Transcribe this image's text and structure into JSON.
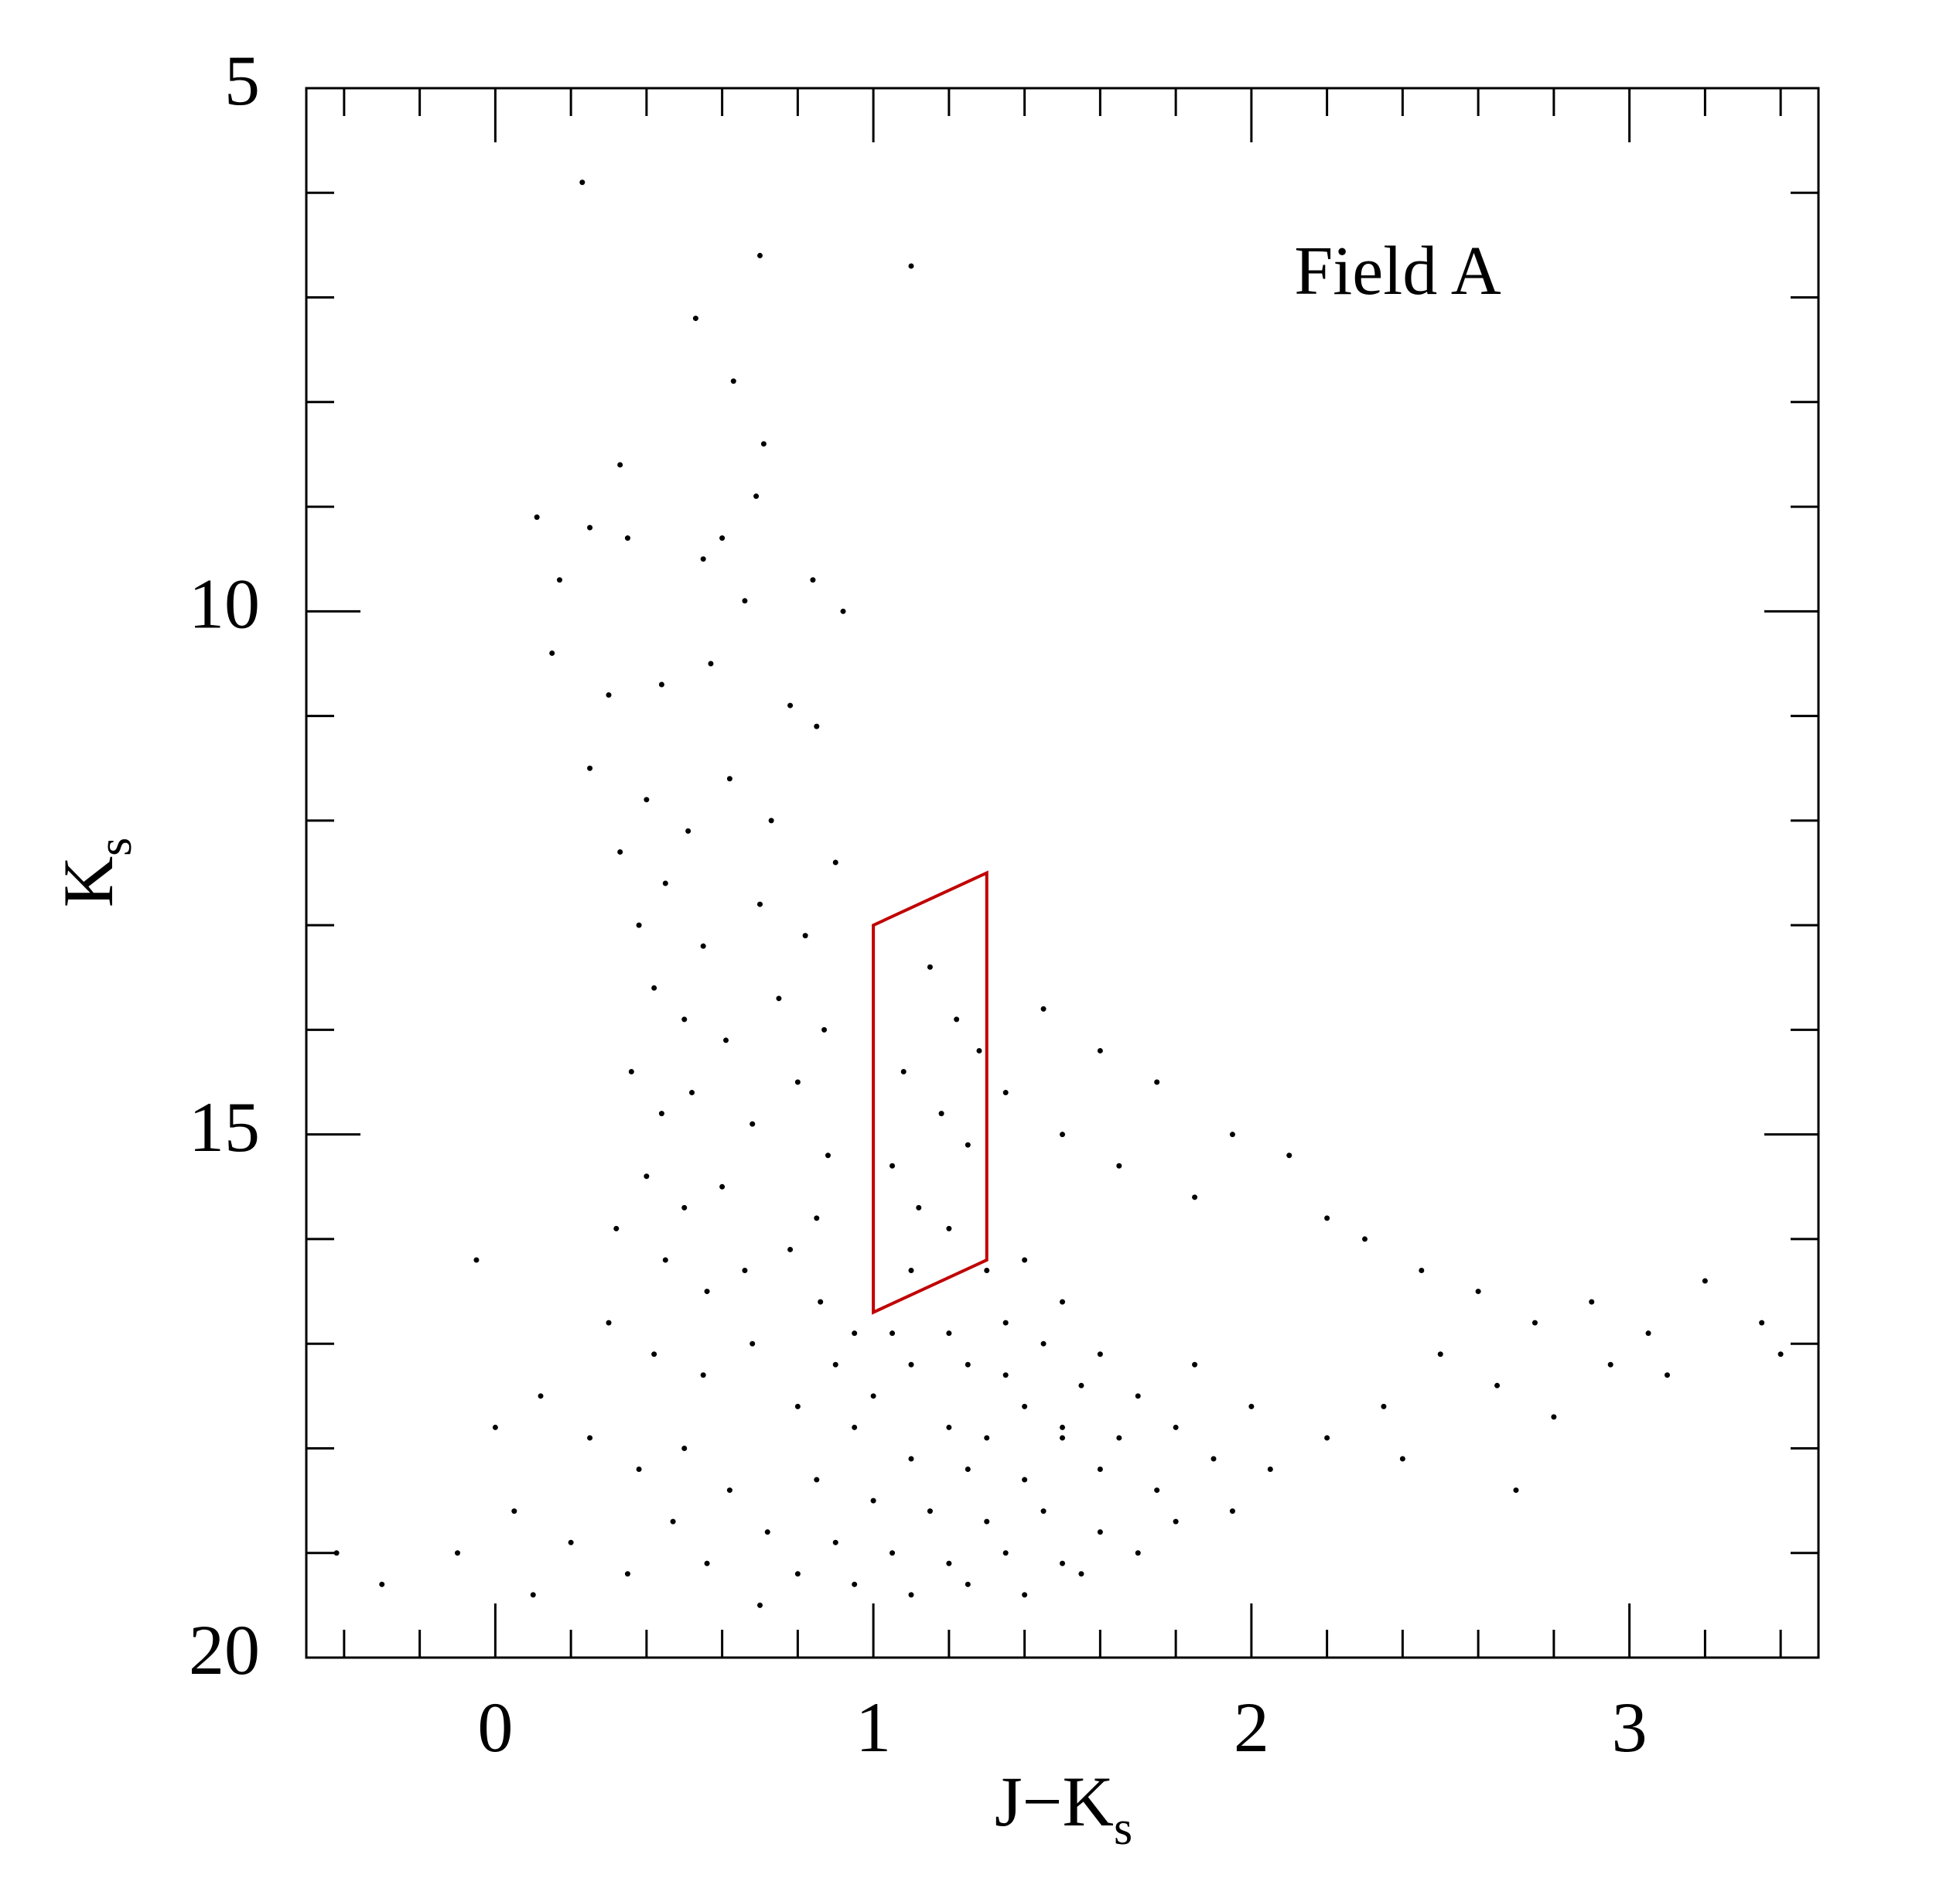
{
  "chart_data": {
    "type": "scatter",
    "xlabel": {
      "main": "J−K",
      "sub": "s"
    },
    "ylabel": {
      "main": "K",
      "sub": "s"
    },
    "annotation": "Field A",
    "xlim": [
      -0.5,
      3.5
    ],
    "ylim": [
      20,
      5
    ],
    "xticks": [
      0,
      1,
      2,
      3
    ],
    "yticks": [
      5,
      10,
      15,
      20
    ],
    "xminorticks": [
      -0.4,
      -0.2,
      0.2,
      0.4,
      0.6,
      0.8,
      1.2,
      1.4,
      1.6,
      1.8,
      2.2,
      2.4,
      2.6,
      2.8,
      3.2,
      3.4
    ],
    "yminorticks": [
      6,
      7,
      8,
      9,
      11,
      12,
      13,
      14,
      16,
      17,
      18,
      19
    ],
    "color": "#000000",
    "x": [
      0.23,
      0.7,
      1.1,
      0.53,
      0.63,
      0.33,
      0.25,
      0.6,
      0.71,
      0.69,
      0.11,
      0.17,
      0.35,
      0.55,
      0.66,
      0.84,
      0.92,
      0.15,
      0.3,
      0.44,
      0.57,
      0.78,
      0.85,
      0.25,
      0.4,
      0.51,
      0.62,
      0.73,
      0.9,
      0.33,
      0.45,
      0.38,
      0.55,
      0.7,
      0.82,
      0.42,
      0.5,
      0.61,
      0.75,
      0.87,
      0.36,
      0.44,
      0.52,
      0.68,
      0.8,
      0.88,
      0.4,
      0.5,
      0.6,
      0.85,
      0.32,
      0.45,
      0.56,
      0.66,
      0.78,
      0.86,
      0.3,
      0.42,
      0.55,
      0.68,
      0.12,
      0.25,
      0.38,
      0.5,
      0.62,
      0.05,
      0.2,
      0.35,
      0.47,
      -0.1,
      -0.3,
      -0.42,
      0.0,
      -0.05,
      0.1,
      0.56,
      0.72,
      0.8,
      0.9,
      0.95,
      1.15,
      1.22,
      1.08,
      1.18,
      1.25,
      1.05,
      1.12,
      1.2,
      1.28,
      1.1,
      1.45,
      1.6,
      1.75,
      1.95,
      2.1,
      1.35,
      1.5,
      1.65,
      1.85,
      2.2,
      2.3,
      2.45,
      2.6,
      2.75,
      2.9,
      3.05,
      3.2,
      3.35,
      3.4,
      3.1,
      2.5,
      2.65,
      2.8,
      2.95,
      2.35,
      2.2,
      2.05,
      2.4,
      2.7,
      1.95,
      1.3,
      1.4,
      1.5,
      1.35,
      1.45,
      1.6,
      1.25,
      1.55,
      1.7,
      1.4,
      1.2,
      1.3,
      1.5,
      1.65,
      1.8,
      1.1,
      1.25,
      1.4,
      1.6,
      1.75,
      1.9,
      1.0,
      1.15,
      1.3,
      1.45,
      1.6,
      1.8,
      0.9,
      1.05,
      1.2,
      1.35,
      1.5,
      1.7,
      0.8,
      0.95,
      1.1,
      1.25,
      1.4,
      1.55,
      0.7,
      1.0,
      1.1,
      1.2,
      1.05,
      0.95,
      0.85,
      1.35,
      1.5,
      1.85,
      2.0
    ],
    "values": [
      5.9,
      6.6,
      6.7,
      7.2,
      7.8,
      8.6,
      9.2,
      9.3,
      8.4,
      8.9,
      9.1,
      9.7,
      9.3,
      9.5,
      9.9,
      9.7,
      10.0,
      10.4,
      10.8,
      10.7,
      10.5,
      10.9,
      11.1,
      11.5,
      11.8,
      12.1,
      11.6,
      12.0,
      12.4,
      12.3,
      12.6,
      13.0,
      13.2,
      12.8,
      13.1,
      13.6,
      13.9,
      14.1,
      13.7,
      14.0,
      14.4,
      14.8,
      14.6,
      14.9,
      14.5,
      15.2,
      15.4,
      15.7,
      15.5,
      15.8,
      15.9,
      16.2,
      16.5,
      16.3,
      16.1,
      16.6,
      16.8,
      17.1,
      17.3,
      17.0,
      17.5,
      17.9,
      18.2,
      18.0,
      18.4,
      18.6,
      18.9,
      19.2,
      18.7,
      19.0,
      19.3,
      19.0,
      17.8,
      16.2,
      19.4,
      19.1,
      18.8,
      17.6,
      17.2,
      16.9,
      13.4,
      13.9,
      14.4,
      14.8,
      15.1,
      15.3,
      15.7,
      15.9,
      14.2,
      16.3,
      13.8,
      14.2,
      14.5,
      15.0,
      15.2,
      14.6,
      15.0,
      15.3,
      15.6,
      15.8,
      16.0,
      16.3,
      16.5,
      16.8,
      16.6,
      16.9,
      16.4,
      16.8,
      17.1,
      17.3,
      17.1,
      17.4,
      17.7,
      17.2,
      17.6,
      17.9,
      18.2,
      18.1,
      18.4,
      18.6,
      16.3,
      16.2,
      16.6,
      16.8,
      17.0,
      17.1,
      17.2,
      17.4,
      17.5,
      17.6,
      17.8,
      17.9,
      17.8,
      17.9,
      17.8,
      18.1,
      18.2,
      18.3,
      18.2,
      18.4,
      18.1,
      18.5,
      18.6,
      18.7,
      18.6,
      18.8,
      18.7,
      18.9,
      19.0,
      19.1,
      19.0,
      19.1,
      19.0,
      19.2,
      19.3,
      19.4,
      19.3,
      19.4,
      19.2,
      19.5,
      17.5,
      17.2,
      16.9,
      16.9,
      17.8,
      18.3,
      17.3,
      17.9,
      17.2,
      17.6
    ],
    "region": {
      "color": "#c00000",
      "x": [
        1.0,
        1.3,
        1.3,
        1.0
      ],
      "y": [
        13.0,
        12.5,
        16.2,
        16.7
      ]
    }
  }
}
